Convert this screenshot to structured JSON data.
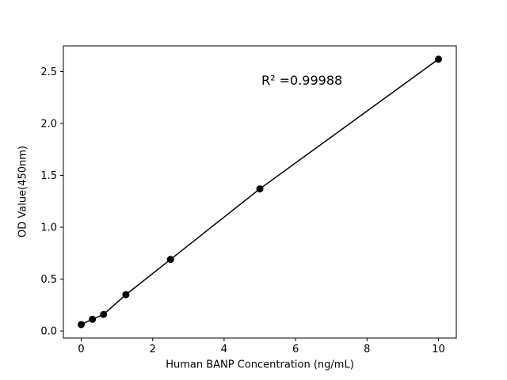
{
  "chart_data": {
    "type": "scatter",
    "title": "",
    "xlabel": "Human BANP Concentration (ng/mL)",
    "ylabel": "OD Value(450nm)",
    "annotation": "R² =0.99988",
    "x": [
      0,
      0.3125,
      0.625,
      1.25,
      2.5,
      5,
      10
    ],
    "y": [
      0.062,
      0.113,
      0.16,
      0.35,
      0.69,
      1.37,
      2.62
    ],
    "xlim": [
      -0.5,
      10.5
    ],
    "ylim": [
      -0.068,
      2.748
    ],
    "xticks": [
      0,
      2,
      4,
      6,
      8,
      10
    ],
    "xtick_labels": [
      "0",
      "2",
      "4",
      "6",
      "8",
      "10"
    ],
    "yticks": [
      0,
      0.5,
      1,
      1.5,
      2,
      2.5
    ],
    "ytick_labels": [
      "0.0",
      "0.5",
      "1.0",
      "1.5",
      "2.0",
      "2.5"
    ],
    "line": true,
    "grid": false,
    "legend": "none",
    "line_color": "#000000",
    "marker_color": "#000000",
    "axis_color": "#000000",
    "background": "#ffffff"
  }
}
